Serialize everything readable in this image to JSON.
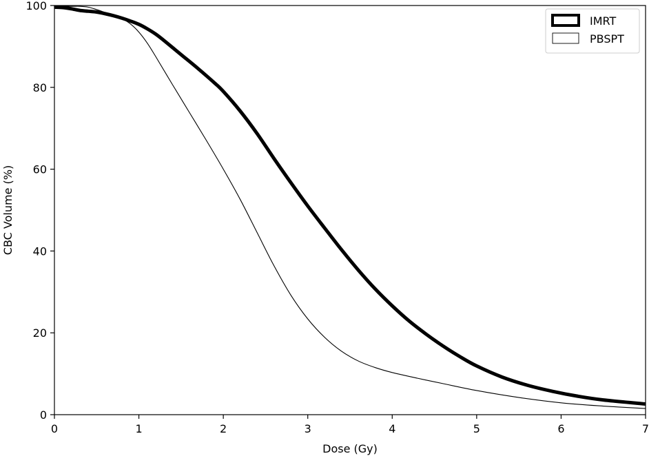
{
  "chart_data": {
    "type": "line",
    "xlabel": "Dose (Gy)",
    "ylabel": "CBC Volume (%)",
    "xlim": [
      0,
      7
    ],
    "ylim": [
      0,
      100
    ],
    "xticks": [
      "0",
      "1",
      "2",
      "3",
      "4",
      "5",
      "6",
      "7"
    ],
    "yticks": [
      "0",
      "20",
      "40",
      "60",
      "80",
      "100"
    ],
    "grid": false,
    "legend_position": "top-right",
    "series": [
      {
        "name": "IMRT",
        "style": "thick",
        "color": "#000000",
        "x": [
          0,
          0.1,
          0.2,
          0.3,
          0.4,
          0.5,
          0.6,
          0.7,
          0.8,
          0.9,
          1.0,
          1.1,
          1.2,
          1.3,
          1.5,
          1.7,
          1.9,
          2.0,
          2.2,
          2.4,
          2.6,
          2.8,
          3.0,
          3.2,
          3.4,
          3.6,
          3.8,
          4.0,
          4.2,
          4.4,
          4.6,
          4.8,
          5.0,
          5.3,
          5.6,
          5.9,
          6.2,
          6.5,
          7.0
        ],
        "y": [
          99.6,
          99.5,
          99.2,
          98.8,
          98.6,
          98.4,
          98.0,
          97.5,
          96.9,
          96.2,
          95.4,
          94.3,
          93.0,
          91.4,
          88.0,
          84.6,
          81.0,
          79.0,
          74.2,
          68.7,
          62.6,
          56.7,
          51.0,
          45.6,
          40.3,
          35.3,
          30.7,
          26.6,
          22.9,
          19.7,
          16.8,
          14.2,
          11.9,
          9.2,
          7.2,
          5.7,
          4.5,
          3.6,
          2.6
        ]
      },
      {
        "name": "PBSPT",
        "style": "thin",
        "color": "#000000",
        "x": [
          0,
          0.1,
          0.2,
          0.3,
          0.4,
          0.5,
          0.6,
          0.7,
          0.8,
          0.9,
          1.0,
          1.1,
          1.2,
          1.4,
          1.6,
          1.8,
          2.0,
          2.2,
          2.4,
          2.6,
          2.8,
          3.0,
          3.2,
          3.4,
          3.6,
          3.8,
          4.0,
          4.3,
          4.6,
          5.0,
          5.5,
          6.0,
          6.5,
          7.0
        ],
        "y": [
          99.9,
          99.9,
          99.8,
          99.8,
          99.6,
          99.0,
          98.3,
          97.6,
          96.8,
          95.5,
          93.5,
          90.8,
          87.5,
          80.6,
          73.8,
          67.0,
          60.0,
          52.6,
          44.5,
          36.4,
          29.2,
          23.4,
          18.9,
          15.5,
          13.1,
          11.5,
          10.3,
          8.9,
          7.6,
          5.9,
          4.2,
          2.9,
          2.1,
          1.5
        ]
      }
    ]
  }
}
